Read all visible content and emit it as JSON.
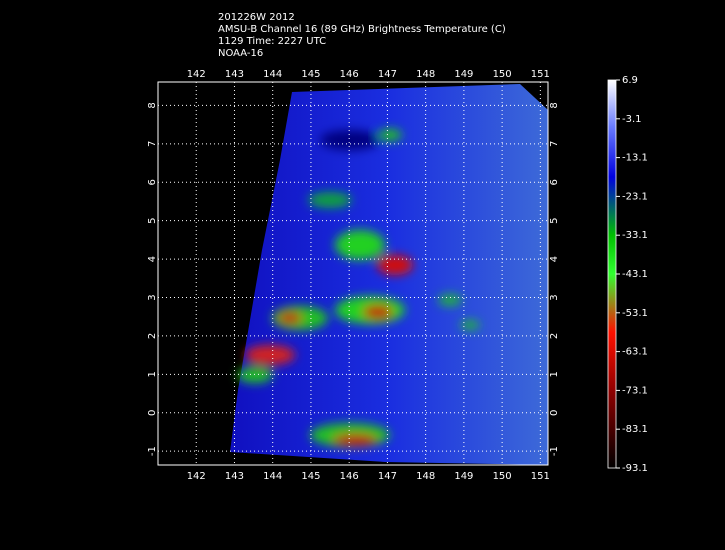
{
  "header": [
    "201226W 2012",
    "AMSU-B Channel 16 (89 GHz) Brightness Temperature (C)",
    "1129 Time: 2227 UTC",
    "NOAA-16"
  ],
  "map": {
    "lonlim": [
      141.0,
      151.2
    ],
    "latlim": [
      -1.36,
      8.61
    ],
    "lon_ticks": [
      142,
      143,
      144,
      145,
      146,
      147,
      148,
      149,
      150,
      151
    ],
    "lat_ticks": [
      8,
      7,
      6,
      5,
      4,
      3,
      2,
      1,
      0,
      -1
    ]
  },
  "colorbar": {
    "lim": [
      -93.1,
      6.9
    ],
    "ticks": [
      6.9,
      -3.1,
      -13.1,
      -23.1,
      -33.1,
      -43.1,
      -53.1,
      -63.1,
      -73.1,
      -83.1,
      -93.1
    ]
  }
}
